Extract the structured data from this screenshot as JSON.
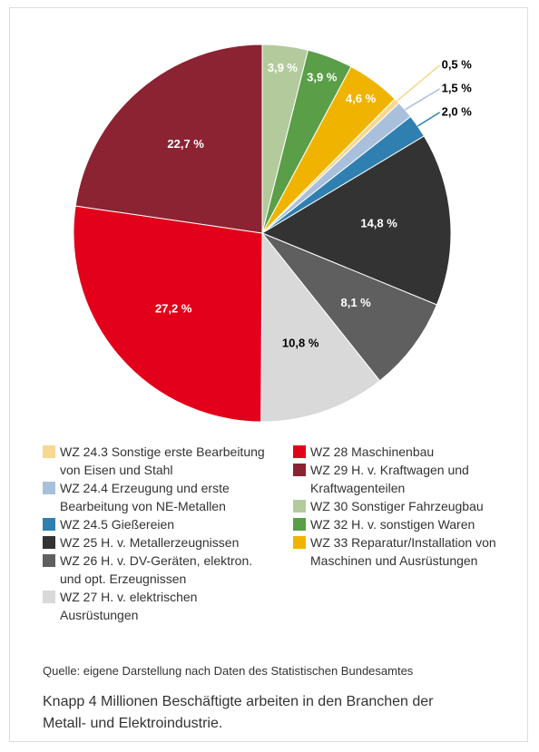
{
  "chart_data": {
    "type": "pie",
    "categories": [
      "WZ 24.3 Sonstige erste Bearbeitung von Eisen und Stahl",
      "WZ 24.4 Erzeugung und erste Bearbeitung von NE-Metallen",
      "WZ 24.5 Gießereien",
      "WZ 25 H. v. Metallerzeugnissen",
      "WZ 26 H. v. DV-Geräten, elektron. und opt. Erzeugnissen",
      "WZ 27 H. v. elektrischen Ausrüstungen",
      "WZ 28 Maschinenbau",
      "WZ 29 H. v. Kraftwagen und Kraftwagenteilen",
      "WZ 30 Sonstiger Fahrzeugbau",
      "WZ 32 H. v. sonstigen Waren",
      "WZ 33 Reparatur/Installation von Maschinen und Ausrüstungen"
    ],
    "values": [
      0.5,
      1.5,
      2.0,
      14.8,
      8.1,
      10.8,
      27.2,
      22.7,
      3.9,
      3.9,
      4.6
    ],
    "value_labels": [
      "0,5 %",
      "1,5 %",
      "2,0 %",
      "14,8 %",
      "8,1 %",
      "10,8 %",
      "27,2 %",
      "22,7 %",
      "3,9 %",
      "3,9 %",
      "4,6 %"
    ],
    "colors": [
      "#f6d88f",
      "#a9c0dc",
      "#2f80b0",
      "#333333",
      "#5f5f5f",
      "#d9d9d9",
      "#e2001a",
      "#8b2332",
      "#b3cb9c",
      "#5a9e47",
      "#f0b400"
    ],
    "source": "Quelle: eigene Darstellung nach Daten des Statistischen Bundesamtes",
    "caption": "Knapp 4 Millionen Beschäftigte arbeiten in den Branchen der Metall- und Elektroindustrie."
  }
}
